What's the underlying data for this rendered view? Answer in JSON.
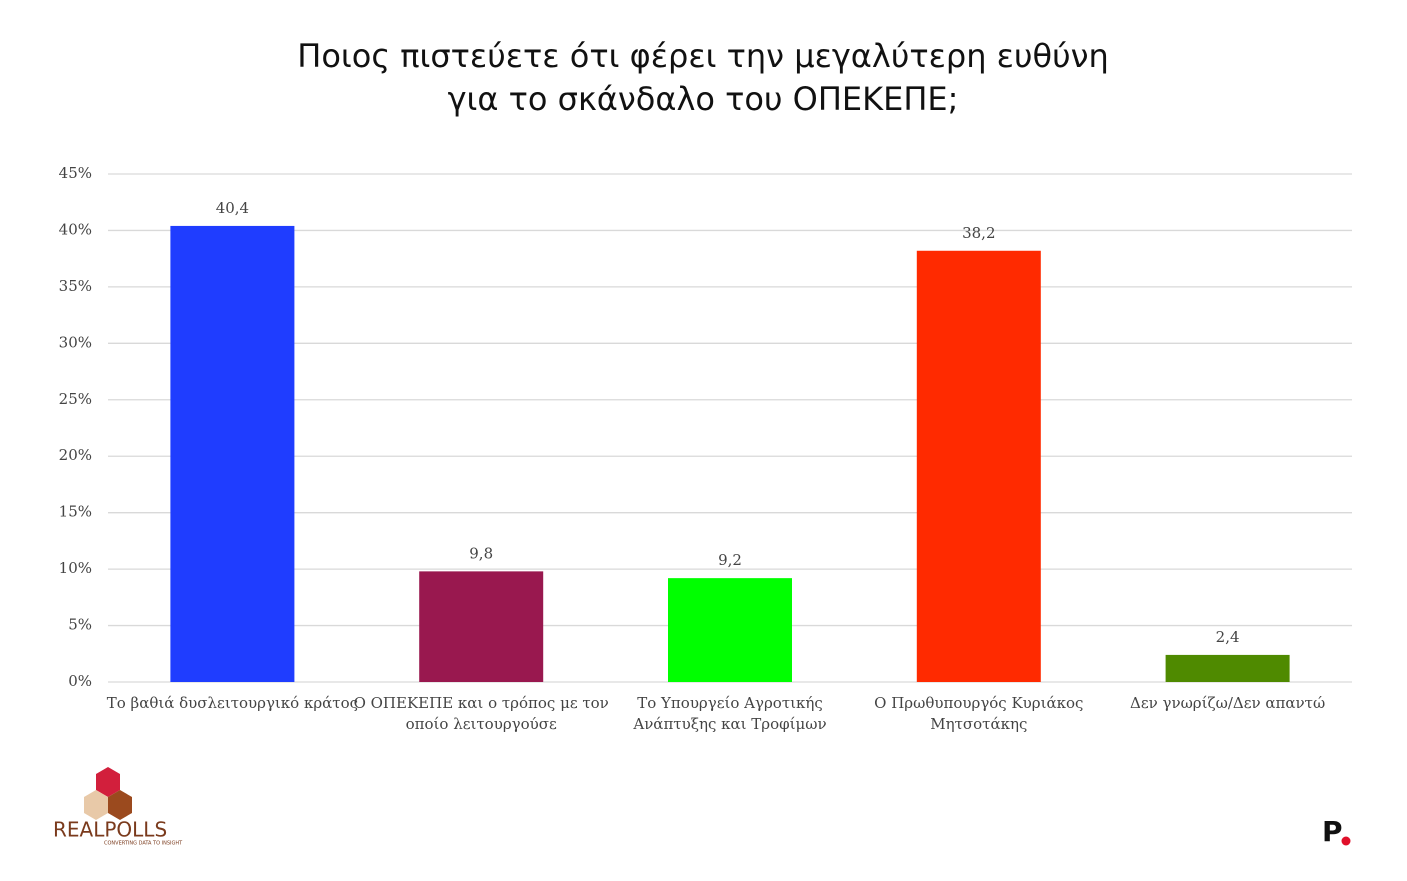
{
  "chart_data": {
    "type": "bar",
    "title": "Ποιος πιστεύετε ότι φέρει την μεγαλύτερη ευθύνη\nγια το σκάνδαλο του ΟΠΕΚΕΠΕ;",
    "categories": [
      "Το βαθιά δυσλειτουργικό κράτος",
      "Ο ΟΠΕΚΕΠΕ και ο τρόπος με τον\nοποίο λειτουργούσε",
      "Το Υπουργείο Αγροτικής\nΑνάπτυξης και Τροφίμων",
      "Ο Πρωθυπουργός Κυριάκος\nΜητσοτάκης",
      "Δεν γνωρίζω/Δεν απαντώ"
    ],
    "values": [
      40.4,
      9.8,
      9.2,
      38.2,
      2.4
    ],
    "value_labels": [
      "40,4",
      "9,8",
      "9,2",
      "38,2",
      "2,4"
    ],
    "colors": [
      "#1f3dff",
      "#99184f",
      "#00ff00",
      "#ff2a00",
      "#4f8a00"
    ],
    "ylim": [
      0,
      45
    ],
    "yticks": [
      {
        "value": 0,
        "label": "0%"
      },
      {
        "value": 5,
        "label": "5%"
      },
      {
        "value": 10,
        "label": "10%"
      },
      {
        "value": 15,
        "label": "15%"
      },
      {
        "value": 20,
        "label": "20%"
      },
      {
        "value": 25,
        "label": "25%"
      },
      {
        "value": 30,
        "label": "30%"
      },
      {
        "value": 35,
        "label": "35%"
      },
      {
        "value": 40,
        "label": "40%"
      },
      {
        "value": 45,
        "label": "45%"
      }
    ],
    "grid": true,
    "annotations": {
      "logo_left": "REALPOLLS",
      "logo_left_tagline": "CONVERTING DATA TO INSIGHT",
      "logo_right": "P"
    }
  }
}
